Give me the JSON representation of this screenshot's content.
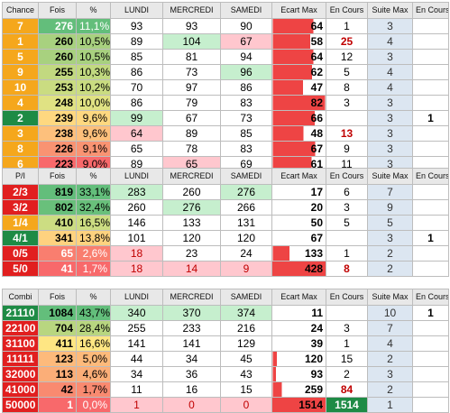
{
  "headers_chance": [
    "Chance",
    "Fois",
    "%",
    "LUNDI",
    "MERCREDI",
    "SAMEDI",
    "Ecart Max",
    "En Cours",
    "Suite Max",
    "En Cours"
  ],
  "headers_pi": [
    "P/I",
    "Fois",
    "%",
    "LUNDI",
    "MERCREDI",
    "SAMEDI",
    "Ecart Max",
    "En Cours",
    "Suite Max",
    "En Cours"
  ],
  "headers_combi": [
    "Combi",
    "Fois",
    "%",
    "LUNDI",
    "MERCREDI",
    "SAMEDI",
    "Ecart Max",
    "En Cours",
    "Suite Max",
    "En Cours"
  ],
  "chance": {
    "rows": [
      {
        "label": "7",
        "fois": "276",
        "pct": "11,1%",
        "lundi": "93",
        "mercredi": "93",
        "samedi": "90",
        "ecart": "64",
        "cours": "1",
        "suite": "3",
        "cur": ""
      },
      {
        "label": "1",
        "fois": "260",
        "pct": "10,5%",
        "lundi": "89",
        "mercredi": "104",
        "samedi": "67",
        "ecart": "58",
        "cours": "25",
        "suite": "4",
        "cur": ""
      },
      {
        "label": "5",
        "fois": "260",
        "pct": "10,5%",
        "lundi": "85",
        "mercredi": "81",
        "samedi": "94",
        "ecart": "64",
        "cours": "12",
        "suite": "3",
        "cur": ""
      },
      {
        "label": "9",
        "fois": "255",
        "pct": "10,3%",
        "lundi": "86",
        "mercredi": "73",
        "samedi": "96",
        "ecart": "62",
        "cours": "5",
        "suite": "4",
        "cur": ""
      },
      {
        "label": "10",
        "fois": "253",
        "pct": "10,2%",
        "lundi": "70",
        "mercredi": "97",
        "samedi": "86",
        "ecart": "47",
        "cours": "8",
        "suite": "4",
        "cur": ""
      },
      {
        "label": "4",
        "fois": "248",
        "pct": "10,0%",
        "lundi": "86",
        "mercredi": "79",
        "samedi": "83",
        "ecart": "82",
        "cours": "3",
        "suite": "3",
        "cur": ""
      },
      {
        "label": "2",
        "fois": "239",
        "pct": "9,6%",
        "lundi": "99",
        "mercredi": "67",
        "samedi": "73",
        "ecart": "66",
        "cours": "",
        "suite": "3",
        "cur": "1"
      },
      {
        "label": "3",
        "fois": "238",
        "pct": "9,6%",
        "lundi": "64",
        "mercredi": "89",
        "samedi": "85",
        "ecart": "48",
        "cours": "13",
        "suite": "3",
        "cur": ""
      },
      {
        "label": "8",
        "fois": "226",
        "pct": "9,1%",
        "lundi": "65",
        "mercredi": "78",
        "samedi": "83",
        "ecart": "67",
        "cours": "9",
        "suite": "3",
        "cur": ""
      },
      {
        "label": "6",
        "fois": "223",
        "pct": "9,0%",
        "lundi": "89",
        "mercredi": "65",
        "samedi": "69",
        "ecart": "61",
        "cours": "11",
        "suite": "3",
        "cur": ""
      }
    ]
  },
  "pi": {
    "rows": [
      {
        "label": "2/3",
        "fois": "819",
        "pct": "33,1%",
        "lundi": "283",
        "mercredi": "260",
        "samedi": "276",
        "ecart": "17",
        "cours": "6",
        "suite": "7",
        "cur": ""
      },
      {
        "label": "3/2",
        "fois": "802",
        "pct": "32,4%",
        "lundi": "260",
        "mercredi": "276",
        "samedi": "266",
        "ecart": "20",
        "cours": "3",
        "suite": "9",
        "cur": ""
      },
      {
        "label": "1/4",
        "fois": "410",
        "pct": "16,5%",
        "lundi": "146",
        "mercredi": "133",
        "samedi": "131",
        "ecart": "50",
        "cours": "5",
        "suite": "5",
        "cur": ""
      },
      {
        "label": "4/1",
        "fois": "341",
        "pct": "13,8%",
        "lundi": "101",
        "mercredi": "120",
        "samedi": "120",
        "ecart": "67",
        "cours": "",
        "suite": "3",
        "cur": "1"
      },
      {
        "label": "0/5",
        "fois": "65",
        "pct": "2,6%",
        "lundi": "18",
        "mercredi": "23",
        "samedi": "24",
        "ecart": "133",
        "cours": "1",
        "suite": "2",
        "cur": ""
      },
      {
        "label": "5/0",
        "fois": "41",
        "pct": "1,7%",
        "lundi": "18",
        "mercredi": "14",
        "samedi": "9",
        "ecart": "428",
        "cours": "8",
        "suite": "2",
        "cur": ""
      }
    ]
  },
  "combi": {
    "rows": [
      {
        "label": "21110",
        "fois": "1084",
        "pct": "43,7%",
        "lundi": "340",
        "mercredi": "370",
        "samedi": "374",
        "ecart": "11",
        "cours": "",
        "suite": "10",
        "cur": "1"
      },
      {
        "label": "22100",
        "fois": "704",
        "pct": "28,4%",
        "lundi": "255",
        "mercredi": "233",
        "samedi": "216",
        "ecart": "24",
        "cours": "3",
        "suite": "7",
        "cur": ""
      },
      {
        "label": "31100",
        "fois": "411",
        "pct": "16,6%",
        "lundi": "141",
        "mercredi": "141",
        "samedi": "129",
        "ecart": "39",
        "cours": "1",
        "suite": "4",
        "cur": ""
      },
      {
        "label": "11111",
        "fois": "123",
        "pct": "5,0%",
        "lundi": "44",
        "mercredi": "34",
        "samedi": "45",
        "ecart": "120",
        "cours": "15",
        "suite": "2",
        "cur": ""
      },
      {
        "label": "32000",
        "fois": "113",
        "pct": "4,6%",
        "lundi": "34",
        "mercredi": "36",
        "samedi": "43",
        "ecart": "93",
        "cours": "2",
        "suite": "3",
        "cur": ""
      },
      {
        "label": "41000",
        "fois": "42",
        "pct": "1,7%",
        "lundi": "11",
        "mercredi": "16",
        "samedi": "15",
        "ecart": "259",
        "cours": "84",
        "suite": "2",
        "cur": ""
      },
      {
        "label": "50000",
        "fois": "1",
        "pct": "0,0%",
        "lundi": "1",
        "mercredi": "0",
        "samedi": "0",
        "ecart": "1514",
        "cours": "1514",
        "suite": "1",
        "cur": ""
      }
    ]
  },
  "colors": {
    "orange": "#f5a71c",
    "green": "#1e8b45",
    "red": "#e11f1f",
    "ecart_bar": "#ee4444",
    "fois_green": "#63be7b",
    "fois_yellow": "#ffeb84",
    "fois_red": "#f8696b",
    "day_green": "#c6efce",
    "day_red": "#ffc7ce",
    "suite_bg": "#dce6f1"
  }
}
